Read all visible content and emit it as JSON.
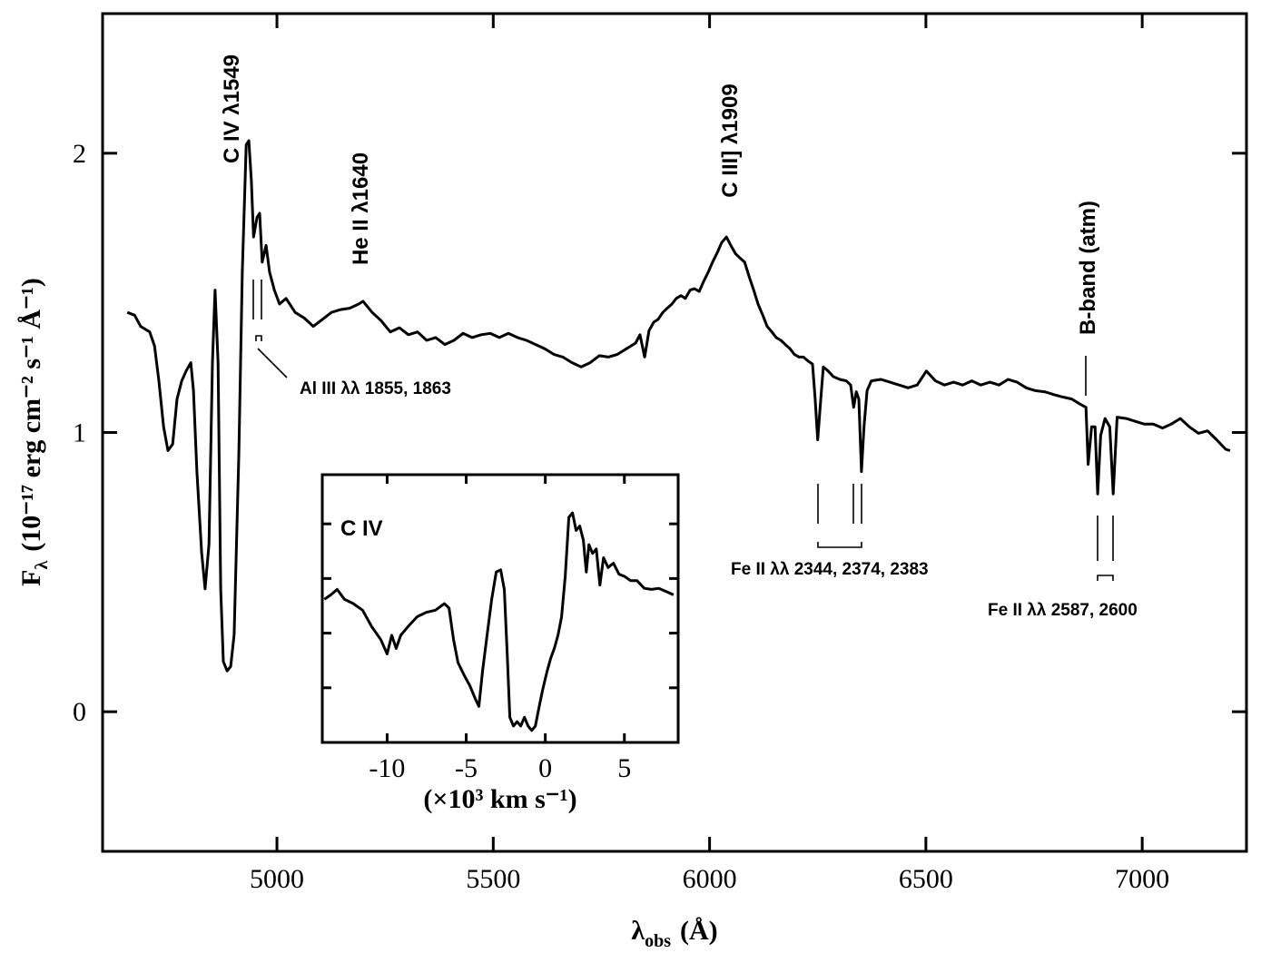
{
  "chart_data": [
    {
      "type": "line",
      "color": "#000000",
      "xlabel": {
        "symbol": "λ",
        "subscript": "obs",
        "unit": "(Å)"
      },
      "ylabel": {
        "symbol": "F",
        "subscript": "λ",
        "unit": "(10⁻¹⁷ erg cm⁻² s⁻¹ Å⁻¹)"
      },
      "xlim": [
        4597,
        7241
      ],
      "ylim": [
        -0.5,
        2.5
      ],
      "xticks": [
        5000,
        5500,
        6000,
        6500,
        7000
      ],
      "yticks": [
        0,
        1,
        2
      ],
      "annotations": [
        "C IV λ1549",
        "He II λ1640",
        "C III] λ1909",
        "B-band (atm)",
        "Al III λλ 1855, 1863",
        "Fe II λλ 2344, 2374, 2383",
        "Fe II λλ 2587, 2600"
      ],
      "x": [
        4654,
        4671,
        4685,
        4706,
        4717,
        4727,
        4738,
        4748,
        4759,
        4769,
        4780,
        4790,
        4801,
        4807,
        4815,
        4826,
        4834,
        4843,
        4851,
        4857,
        4864,
        4870,
        4876,
        4885,
        4893,
        4901,
        4912,
        4920,
        4929,
        4935,
        4941,
        4946,
        4954,
        4960,
        4966,
        4975,
        4983,
        4994,
        5006,
        5021,
        5042,
        5063,
        5084,
        5105,
        5126,
        5147,
        5168,
        5189,
        5199,
        5220,
        5241,
        5262,
        5283,
        5304,
        5325,
        5346,
        5367,
        5388,
        5409,
        5430,
        5451,
        5472,
        5493,
        5514,
        5535,
        5556,
        5577,
        5598,
        5619,
        5640,
        5661,
        5682,
        5703,
        5724,
        5745,
        5766,
        5787,
        5808,
        5829,
        5839,
        5850,
        5860,
        5871,
        5881,
        5892,
        5902,
        5913,
        5923,
        5934,
        5944,
        5955,
        5965,
        5976,
        5986,
        5997,
        6007,
        6018,
        6028,
        6039,
        6049,
        6060,
        6070,
        6081,
        6091,
        6102,
        6112,
        6123,
        6133,
        6144,
        6154,
        6165,
        6175,
        6186,
        6196,
        6207,
        6217,
        6228,
        6238,
        6244,
        6250,
        6257,
        6263,
        6274,
        6286,
        6301,
        6316,
        6326,
        6333,
        6339,
        6345,
        6351,
        6357,
        6364,
        6374,
        6396,
        6417,
        6438,
        6459,
        6480,
        6501,
        6522,
        6543,
        6564,
        6585,
        6606,
        6627,
        6648,
        6669,
        6690,
        6711,
        6732,
        6753,
        6774,
        6795,
        6816,
        6837,
        6858,
        6870,
        6875,
        6883,
        6891,
        6897,
        6904,
        6914,
        6925,
        6933,
        6942,
        6963,
        6984,
        7005,
        7026,
        7047,
        7067,
        7088,
        7109,
        7130,
        7151,
        7172,
        7193,
        7203
      ],
      "values": [
        1.43,
        1.42,
        1.38,
        1.36,
        1.31,
        1.185,
        1.02,
        0.935,
        0.958,
        1.12,
        1.185,
        1.22,
        1.25,
        1.15,
        0.86,
        0.57,
        0.44,
        0.6,
        1.25,
        1.51,
        1.25,
        0.44,
        0.18,
        0.146,
        0.162,
        0.276,
        0.925,
        1.575,
        2.03,
        2.045,
        1.9,
        1.7,
        1.77,
        1.785,
        1.61,
        1.67,
        1.575,
        1.51,
        1.46,
        1.48,
        1.43,
        1.41,
        1.38,
        1.405,
        1.43,
        1.44,
        1.445,
        1.46,
        1.47,
        1.43,
        1.4,
        1.36,
        1.375,
        1.35,
        1.36,
        1.33,
        1.34,
        1.315,
        1.33,
        1.355,
        1.34,
        1.35,
        1.355,
        1.34,
        1.355,
        1.34,
        1.33,
        1.315,
        1.3,
        1.28,
        1.27,
        1.25,
        1.235,
        1.25,
        1.275,
        1.27,
        1.28,
        1.3,
        1.32,
        1.35,
        1.27,
        1.365,
        1.395,
        1.405,
        1.43,
        1.445,
        1.46,
        1.48,
        1.49,
        1.48,
        1.51,
        1.515,
        1.505,
        1.54,
        1.575,
        1.61,
        1.645,
        1.68,
        1.7,
        1.67,
        1.64,
        1.625,
        1.61,
        1.56,
        1.51,
        1.46,
        1.42,
        1.38,
        1.36,
        1.34,
        1.33,
        1.315,
        1.3,
        1.28,
        1.27,
        1.27,
        1.255,
        1.245,
        1.12,
        0.974,
        1.12,
        1.235,
        1.22,
        1.2,
        1.19,
        1.185,
        1.17,
        1.09,
        1.146,
        1.12,
        0.86,
        1.02,
        1.15,
        1.185,
        1.19,
        1.18,
        1.17,
        1.16,
        1.17,
        1.22,
        1.185,
        1.17,
        1.18,
        1.17,
        1.185,
        1.17,
        1.18,
        1.17,
        1.19,
        1.18,
        1.16,
        1.15,
        1.146,
        1.136,
        1.127,
        1.12,
        1.1,
        1.09,
        0.886,
        1.02,
        1.02,
        0.78,
        0.99,
        1.05,
        1.02,
        0.78,
        1.055,
        1.05,
        1.04,
        1.03,
        1.03,
        1.016,
        1.03,
        1.05,
        1.02,
        0.997,
        1.006,
        0.974,
        0.94,
        0.935
      ]
    },
    {
      "type": "line",
      "color": "#000000",
      "xlabel": "(×10³ km s⁻¹)",
      "annotations": [
        "C IV"
      ],
      "xlim": [
        -14.1,
        8.4
      ],
      "ylim": [
        0,
        2.45
      ],
      "xticks": [
        -10,
        -5,
        0,
        5
      ],
      "yticks": [
        0.5,
        1,
        1.5,
        2
      ],
      "x": [
        -13.97,
        -13.56,
        -13.16,
        -12.7,
        -12.13,
        -11.55,
        -10.98,
        -10.4,
        -10,
        -9.71,
        -9.43,
        -9.14,
        -8.68,
        -8.1,
        -7.53,
        -6.95,
        -6.38,
        -6.09,
        -5.8,
        -5.52,
        -5.11,
        -4.77,
        -4.43,
        -4.2,
        -3.97,
        -3.68,
        -3.39,
        -3.1,
        -2.82,
        -2.59,
        -2.41,
        -2.24,
        -2.01,
        -1.78,
        -1.55,
        -1.32,
        -1.09,
        -0.86,
        -0.63,
        -0.4,
        -0.17,
        0.11,
        0.34,
        0.57,
        0.8,
        1.03,
        1.26,
        1.49,
        1.72,
        1.95,
        2.18,
        2.41,
        2.59,
        2.76,
        2.99,
        3.22,
        3.45,
        3.68,
        3.97,
        4.31,
        4.66,
        5,
        5.4,
        5.8,
        6.26,
        6.72,
        7.18,
        7.64,
        8.1
      ],
      "values": [
        1.31,
        1.35,
        1.4,
        1.31,
        1.27,
        1.21,
        1.06,
        0.94,
        0.81,
        0.98,
        0.86,
        0.98,
        1.06,
        1.15,
        1.19,
        1.21,
        1.27,
        1.23,
        0.94,
        0.73,
        0.61,
        0.52,
        0.4,
        0.33,
        0.65,
        0.98,
        1.31,
        1.56,
        1.58,
        1.4,
        0.81,
        0.23,
        0.15,
        0.19,
        0.15,
        0.23,
        0.15,
        0.11,
        0.15,
        0.32,
        0.48,
        0.65,
        0.77,
        0.86,
        0.98,
        1.15,
        1.52,
        2.06,
        2.1,
        1.94,
        1.98,
        1.85,
        1.56,
        1.81,
        1.73,
        1.77,
        1.44,
        1.69,
        1.6,
        1.64,
        1.54,
        1.52,
        1.48,
        1.48,
        1.41,
        1.4,
        1.41,
        1.38,
        1.35
      ]
    }
  ]
}
